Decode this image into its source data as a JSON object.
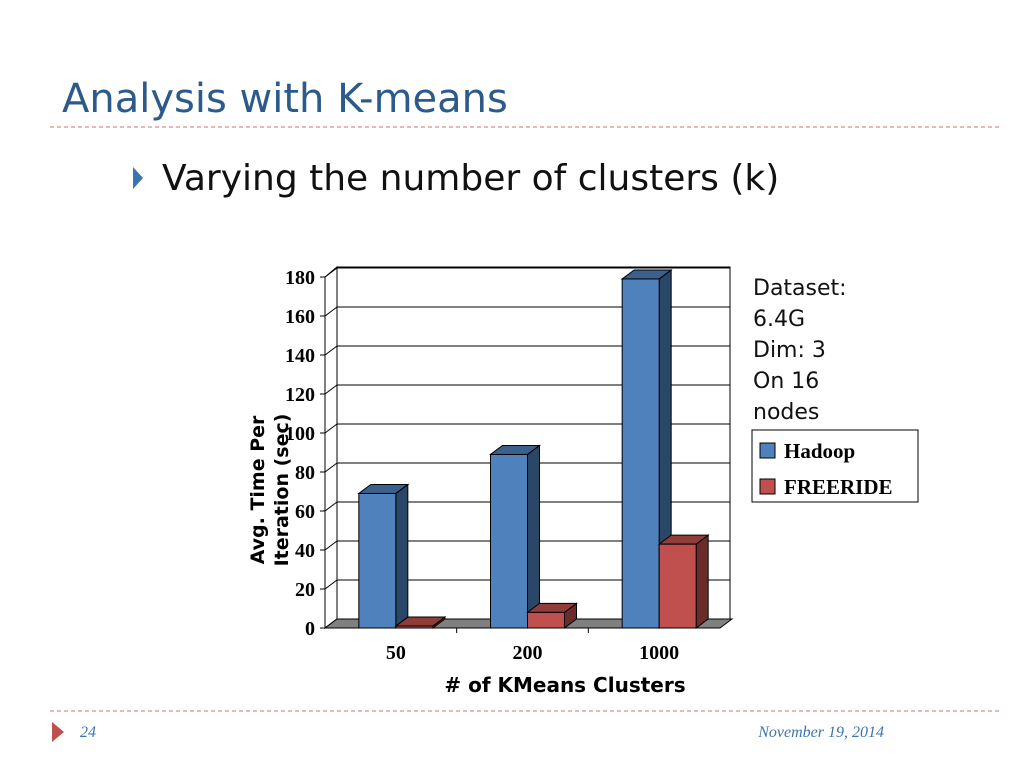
{
  "slide": {
    "title": "Analysis with K-means",
    "bullet": "Varying the number of clusters (k)",
    "note": [
      "Dataset:",
      "6.4G",
      "Dim:  3",
      "On 16",
      "nodes"
    ],
    "page_number": "24",
    "date": "November 19, 2014"
  },
  "chart_data": {
    "type": "bar3d",
    "xlabel": "# of KMeans Clusters",
    "ylabel": [
      "Avg. Time Per",
      "Iteration (sec)"
    ],
    "categories": [
      "50",
      "200",
      "1000"
    ],
    "series": [
      {
        "name": "Hadoop",
        "color": "#4f81bd",
        "values": [
          69,
          89,
          179
        ]
      },
      {
        "name": "FREERIDE",
        "color": "#c0504d",
        "values": [
          1,
          8,
          43
        ]
      }
    ],
    "ylim": [
      0,
      180
    ],
    "yticks": [
      0,
      20,
      40,
      60,
      80,
      100,
      120,
      140,
      160,
      180
    ],
    "grid": true,
    "legend": "right"
  }
}
